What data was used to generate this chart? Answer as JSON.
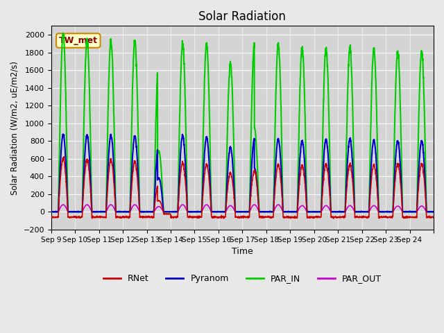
{
  "title": "Solar Radiation",
  "ylabel": "Solar Radiation (W/m2, uE/m2/s)",
  "xlabel": "Time",
  "annotation": "TW_met",
  "ylim": [
    -200,
    2100
  ],
  "yticks": [
    -200,
    0,
    200,
    400,
    600,
    800,
    1000,
    1200,
    1400,
    1600,
    1800,
    2000
  ],
  "x_tick_positions": [
    0,
    1,
    2,
    3,
    4,
    5,
    6,
    7,
    8,
    9,
    10,
    11,
    12,
    13,
    14,
    15,
    16
  ],
  "x_labels": [
    "Sep 9",
    "Sep 10",
    "Sep 11",
    "Sep 12",
    "Sep 13",
    "Sep 14",
    "Sep 15",
    "Sep 16",
    "Sep 17",
    "Sep 18",
    "Sep 19",
    "Sep 20",
    "Sep 21",
    "Sep 22",
    "Sep 23",
    "Sep 24",
    ""
  ],
  "n_days": 16,
  "background_color": "#e8e8e8",
  "plot_bg_color": "#d4d4d4",
  "rnet_peaks": [
    600,
    580,
    580,
    560,
    320,
    550,
    530,
    440,
    460,
    530,
    520,
    540,
    530,
    530,
    540,
    540
  ],
  "pyranom_peaks": [
    870,
    860,
    860,
    850,
    770,
    860,
    840,
    730,
    820,
    820,
    800,
    820,
    820,
    810,
    800,
    800
  ],
  "parin_peaks": [
    2000,
    1930,
    1920,
    1920,
    1730,
    1900,
    1890,
    1680,
    1890,
    1890,
    1850,
    1850,
    1850,
    1840,
    1810,
    1810
  ],
  "parout_peaks": [
    80,
    80,
    80,
    80,
    60,
    80,
    80,
    70,
    80,
    80,
    70,
    70,
    70,
    70,
    65,
    65
  ],
  "series_colors": {
    "RNet": "#cc0000",
    "Pyranom": "#0000cc",
    "PAR_IN": "#00cc00",
    "PAR_OUT": "#cc00cc"
  },
  "series_lw": {
    "RNet": 1.2,
    "Pyranom": 1.5,
    "PAR_IN": 1.5,
    "PAR_OUT": 1.2
  }
}
